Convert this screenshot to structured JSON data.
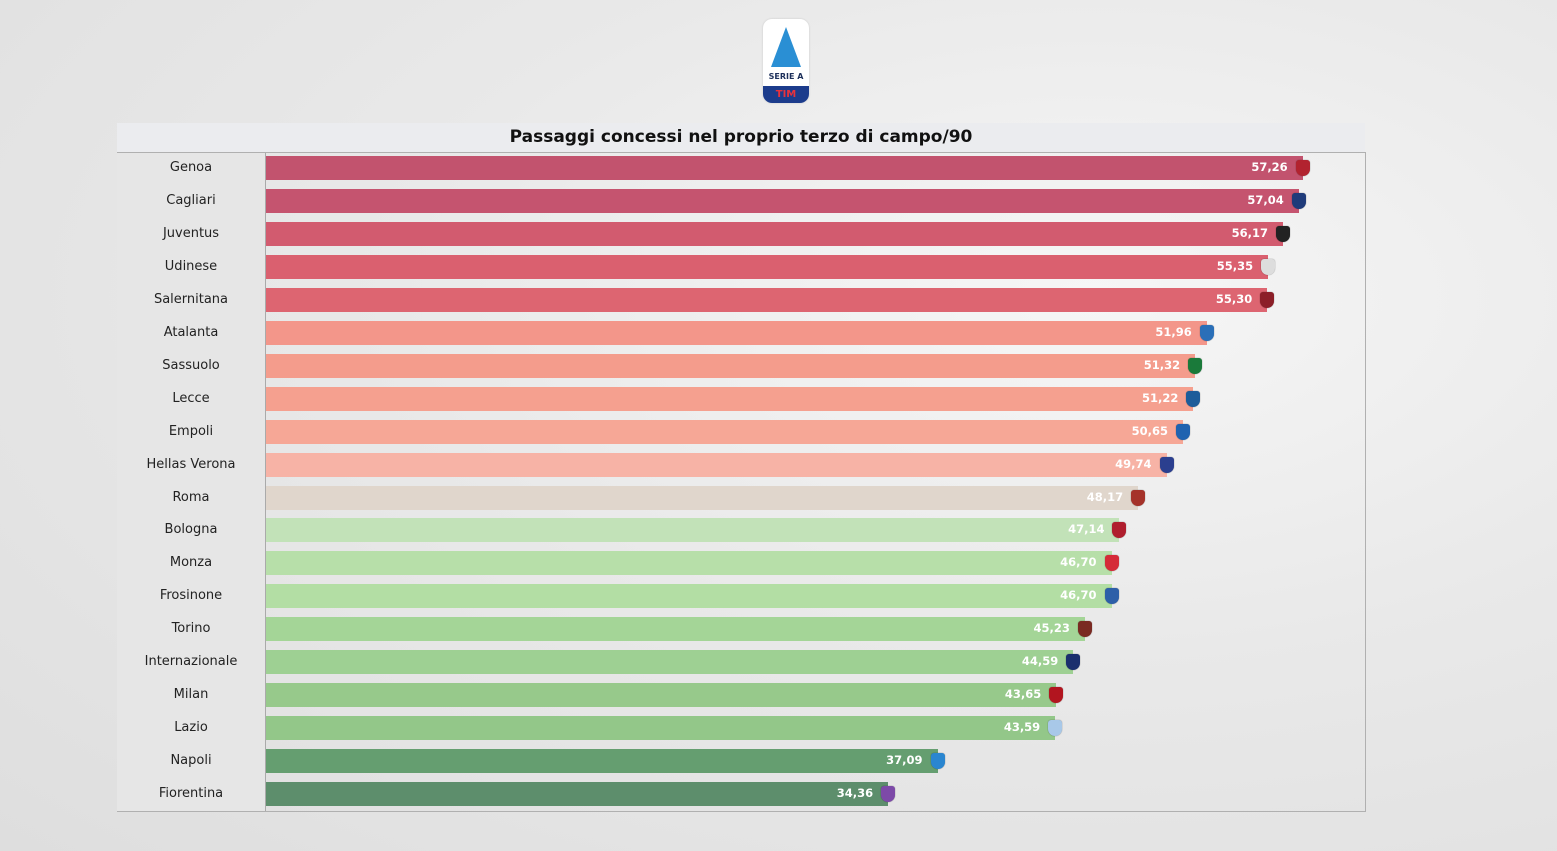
{
  "logo": {
    "line1": "SERIE A",
    "line2": "TIM"
  },
  "chart_data": {
    "type": "bar",
    "orientation": "horizontal",
    "title": "Passaggi concessi nel proprio terzo di campo/90",
    "xlim": [
      0,
      60.7
    ],
    "grid": false,
    "categories": [
      "Genoa",
      "Cagliari",
      "Juventus",
      "Udinese",
      "Salernitana",
      "Atalanta",
      "Sassuolo",
      "Lecce",
      "Empoli",
      "Hellas Verona",
      "Roma",
      "Bologna",
      "Monza",
      "Frosinone",
      "Torino",
      "Internazionale",
      "Milan",
      "Lazio",
      "Napoli",
      "Fiorentina"
    ],
    "values": [
      57.26,
      57.04,
      56.17,
      55.35,
      55.3,
      51.96,
      51.32,
      51.22,
      50.65,
      49.74,
      48.17,
      47.14,
      46.7,
      46.7,
      45.23,
      44.59,
      43.65,
      43.59,
      37.09,
      34.36
    ],
    "value_labels": [
      "57,26",
      "57,04",
      "56,17",
      "55,35",
      "55,30",
      "51,96",
      "51,32",
      "51,22",
      "50,65",
      "49,74",
      "48,17",
      "47,14",
      "46,70",
      "46,70",
      "45,23",
      "44,59",
      "43,65",
      "43,59",
      "37,09",
      "34,36"
    ],
    "bar_colors": [
      "#c2536e",
      "#c5546f",
      "#d25b6f",
      "#da606f",
      "#dd6571",
      "#f3968a",
      "#f49c8c",
      "#f5a08f",
      "#f6a796",
      "#f7b3a6",
      "#e0d6cc",
      "#c2e2b8",
      "#b7dfa9",
      "#b3dea4",
      "#a4d597",
      "#9ed093",
      "#97c98b",
      "#93c789",
      "#659e70",
      "#5d8e6c"
    ],
    "crest_colors": [
      "#b2232f",
      "#1f3b7a",
      "#222222",
      "#dddddd",
      "#8c1f28",
      "#2a6fb8",
      "#1a7a3a",
      "#1d5c9a",
      "#1f63b0",
      "#2b3f8f",
      "#a5322a",
      "#b01e2e",
      "#d52b38",
      "#2d5fa8",
      "#7a2a22",
      "#1b2f6e",
      "#b2151f",
      "#a8c8e8",
      "#2a86d0",
      "#7d4aa8"
    ]
  }
}
